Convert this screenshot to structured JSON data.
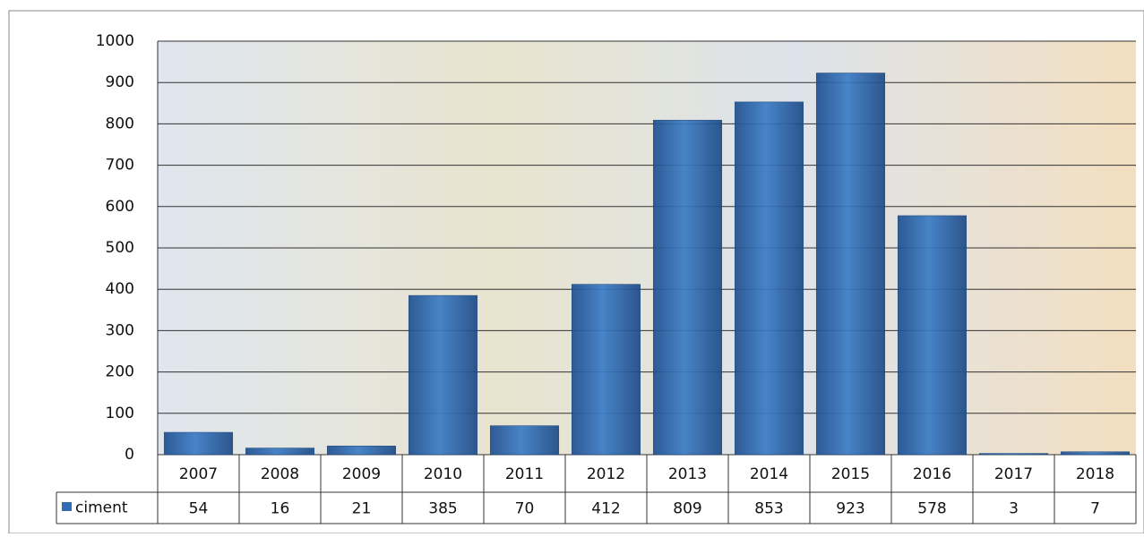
{
  "chart_data": {
    "type": "bar",
    "categories": [
      "2007",
      "2008",
      "2009",
      "2010",
      "2011",
      "2012",
      "2013",
      "2014",
      "2015",
      "2016",
      "2017",
      "2018"
    ],
    "series": [
      {
        "name": "ciment",
        "color": "#2f6db5",
        "values": [
          54,
          16,
          21,
          385,
          70,
          412,
          809,
          853,
          923,
          578,
          3,
          7
        ]
      }
    ],
    "ylim": [
      0,
      1000
    ],
    "yticks": [
      0,
      100,
      200,
      300,
      400,
      500,
      600,
      700,
      800,
      900,
      1000
    ],
    "grid": true
  }
}
